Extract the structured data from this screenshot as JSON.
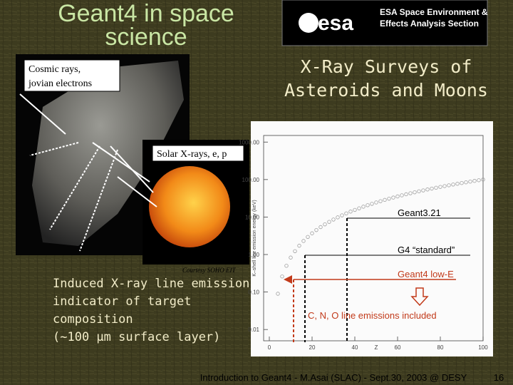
{
  "slide": {
    "title_lines": [
      "Geant4 in space",
      "science"
    ],
    "logo_text": "esa",
    "header_lines": [
      "ESA Space Environment &",
      "Effects Analysis Section"
    ],
    "subtitle_lines": [
      "X-Ray Surveys of",
      "Asteroids and Moons"
    ],
    "cosmic_label_lines": [
      "Cosmic rays,",
      "jovian electrons"
    ],
    "solar_label": "Solar X-rays, e, p",
    "credit": "Courtesy SOHO EIT",
    "body_lines": [
      "Induced X-ray line emission:",
      "indicator of target",
      "composition",
      "(~100 μm surface layer)"
    ],
    "footer": "Introduction to Geant4 - M.Asai (SLAC) - Sept.30, 2003 @ DESY",
    "page_number": "16"
  },
  "chart_data": {
    "type": "scatter",
    "x_label": "Z",
    "y_label": "K–shell line emission energy (keV)",
    "log_y": true,
    "color": "#a0a0a0",
    "x": [
      4,
      6,
      8,
      10,
      12,
      14,
      16,
      18,
      20,
      22,
      24,
      26,
      28,
      30,
      32,
      34,
      36,
      38,
      40,
      42,
      44,
      46,
      48,
      50,
      52,
      54,
      56,
      58,
      60,
      62,
      64,
      66,
      68,
      70,
      72,
      74,
      76,
      78,
      80,
      82,
      84,
      86,
      88,
      90,
      92,
      94,
      96,
      98,
      100
    ],
    "values": [
      0.09,
      0.26,
      0.5,
      0.83,
      1.23,
      1.72,
      2.3,
      2.95,
      3.68,
      4.5,
      5.4,
      6.38,
      7.44,
      8.58,
      9.8,
      11.1,
      12.5,
      14.0,
      15.5,
      17.1,
      18.9,
      20.7,
      22.5,
      24.5,
      26.5,
      28.7,
      30.9,
      33.1,
      35.5,
      38.0,
      40.5,
      43.1,
      45.8,
      48.6,
      51.4,
      54.4,
      57.4,
      60.5,
      63.7,
      66.9,
      70.3,
      73.7,
      77.2,
      80.8,
      84.5,
      88.2,
      92.1,
      96.0,
      100.0
    ],
    "xlim": [
      0,
      100
    ],
    "xticks": [
      0,
      20,
      40,
      60,
      80,
      100
    ],
    "ylim": [
      0.005,
      1500
    ],
    "yticks": [
      {
        "value": 0.01,
        "label": "0.01"
      },
      {
        "value": 0.1,
        "label": "0.10"
      },
      {
        "value": 1,
        "label": "1.00"
      },
      {
        "value": 10,
        "label": "10.00"
      },
      {
        "value": 100,
        "label": "100.00"
      },
      {
        "value": 1000,
        "label": "1000.00"
      }
    ],
    "annotations": [
      "Geant3.21",
      "G4 “standard”",
      "Geant4 low-E",
      "C, N, O line emissions included"
    ]
  }
}
